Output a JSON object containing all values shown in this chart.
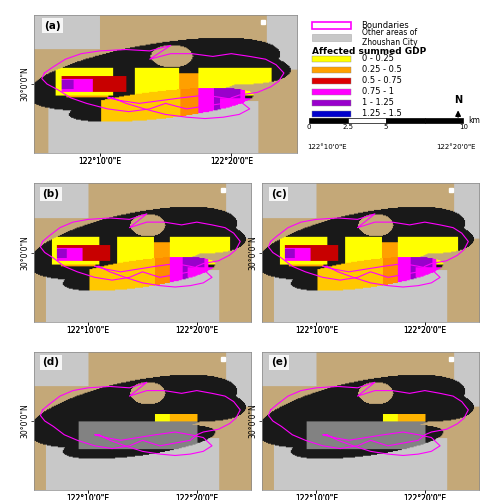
{
  "figure_bg": "#ffffff",
  "outer_bg": "#d4b896",
  "water_bg": "#c8a878",
  "gray_area": "#c8c8c8",
  "dark_land": "#181818",
  "border_color": "#ff00ff",
  "legend_entries": [
    {
      "label": "0 - 0.25",
      "color": "#ffff00"
    },
    {
      "label": "0.25 - 0.5",
      "color": "#ffa000"
    },
    {
      "label": "0.5 - 0.75",
      "color": "#dd0000"
    },
    {
      "label": "0.75 - 1",
      "color": "#ff00ff"
    },
    {
      "label": "1 - 1.25",
      "color": "#9900cc"
    },
    {
      "label": "1.25 - 1.5",
      "color": "#0000cc"
    }
  ],
  "x_ticks": [
    "122°10'0\"E",
    "122°20'0\"E"
  ],
  "y_tick": "30°0'0\"N"
}
